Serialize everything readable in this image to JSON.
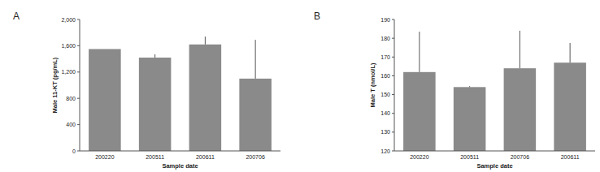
{
  "chart_data": [
    {
      "type": "bar",
      "title": "A",
      "x_label": "Sample date",
      "y_label": "Male 11-KT (pg/mL)",
      "categories": [
        "200220",
        "200511",
        "200611",
        "200706"
      ],
      "values": [
        1550,
        1420,
        1620,
        1100
      ],
      "errors": [
        0,
        50,
        120,
        590
      ],
      "color": "#8a8a8a",
      "ylim": [
        0,
        2000
      ],
      "yticks": [
        0,
        400,
        800,
        {
          "value": 1200,
          "label": "1,200"
        },
        {
          "value": 1600,
          "label": "1,600"
        },
        {
          "value": 2000,
          "label": "2,000"
        }
      ],
      "grid": false
    },
    {
      "type": "bar",
      "title": "B",
      "x_label": "Sample date",
      "y_label": "Male T (nmol/L)",
      "categories": [
        "200220",
        "200511",
        "200706",
        "200611"
      ],
      "values": [
        162,
        154,
        164,
        167
      ],
      "errors": [
        21.5,
        0.5,
        20,
        10.5
      ],
      "color": "#8a8a8a",
      "ylim": [
        120,
        190
      ],
      "yticks": [
        120,
        130,
        140,
        150,
        160,
        170,
        180,
        190
      ],
      "grid": false
    }
  ]
}
